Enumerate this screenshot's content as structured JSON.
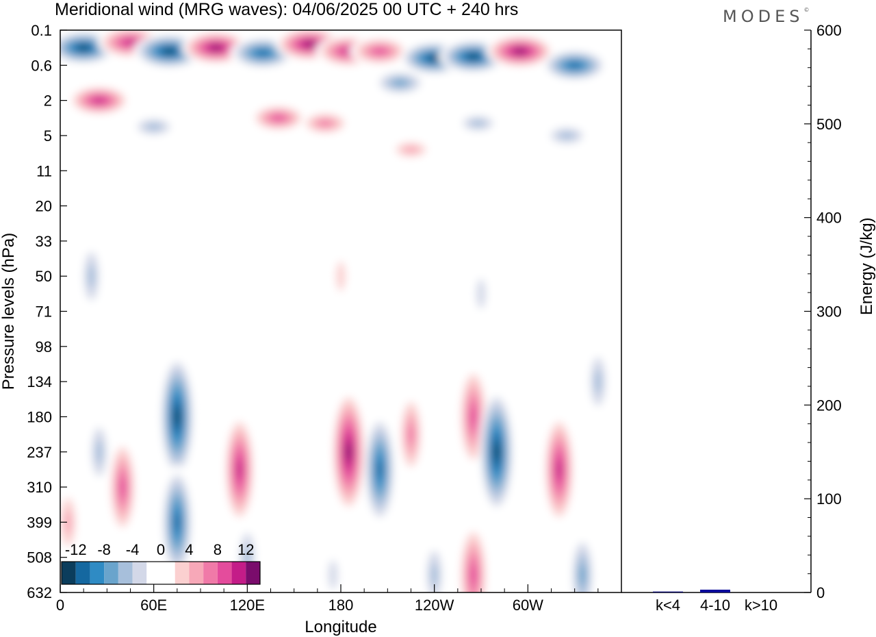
{
  "header": {
    "title": "Meridional wind (MRG waves):  04/06/2025  00 UTC  + 240 hrs",
    "brand": "MODES",
    "brand_mark": "©"
  },
  "chart_data": [
    {
      "type": "heatmap",
      "title": "Meridional wind (MRG waves):  04/06/2025  00 UTC  + 240 hrs",
      "xlabel": "Longitude",
      "ylabel": "Pressure levels (hPa)",
      "x_ticks": [
        "0",
        "60E",
        "120E",
        "180",
        "120W",
        "60W"
      ],
      "y_ticks": [
        "0.1",
        "0.6",
        "2",
        "5",
        "11",
        "20",
        "33",
        "50",
        "71",
        "98",
        "134",
        "180",
        "237",
        "310",
        "399",
        "508",
        "632"
      ],
      "colorbar": {
        "tick_labels": [
          "-12",
          "-8",
          "-4",
          "0",
          "4",
          "8",
          "12"
        ],
        "levels": [
          -14,
          -12,
          -10,
          -8,
          -6,
          -4,
          -2,
          0,
          2,
          4,
          6,
          8,
          10,
          12,
          14
        ],
        "colors": [
          "#0b3d5c",
          "#1568a0",
          "#2f8bc4",
          "#6aa4cc",
          "#a7bfdb",
          "#d3d8e8",
          "#ffffff",
          "#ffffff",
          "#fbd0d0",
          "#f7a8b8",
          "#f07aa8",
          "#e44c9c",
          "#c41c88",
          "#7a0c6c"
        ]
      },
      "blobs": [
        {
          "lon": 15,
          "lev": 1.0,
          "v": -13
        },
        {
          "lon": 45,
          "lev": 0.7,
          "v": 12
        },
        {
          "lon": 70,
          "lev": 1.2,
          "v": -14
        },
        {
          "lon": 100,
          "lev": 1.0,
          "v": 13
        },
        {
          "lon": 130,
          "lev": 1.3,
          "v": -12
        },
        {
          "lon": 160,
          "lev": 0.8,
          "v": 13
        },
        {
          "lon": 185,
          "lev": 1.2,
          "v": 12
        },
        {
          "lon": 205,
          "lev": 1.2,
          "v": 10
        },
        {
          "lon": 218,
          "lev": 3.0,
          "v": -8
        },
        {
          "lon": 240,
          "lev": 1.6,
          "v": -13
        },
        {
          "lon": 265,
          "lev": 1.5,
          "v": -13
        },
        {
          "lon": 295,
          "lev": 1.2,
          "v": 13
        },
        {
          "lon": 330,
          "lev": 2.0,
          "v": -12
        },
        {
          "lon": 25,
          "lev": 4.0,
          "v": 11
        },
        {
          "lon": 60,
          "lev": 5.5,
          "v": -6
        },
        {
          "lon": 140,
          "lev": 5.0,
          "v": 9
        },
        {
          "lon": 170,
          "lev": 5.3,
          "v": 7
        },
        {
          "lon": 225,
          "lev": 6.8,
          "v": 5
        },
        {
          "lon": 268,
          "lev": 5.3,
          "v": -5
        },
        {
          "lon": 325,
          "lev": 6.0,
          "v": -6
        },
        {
          "lon": 20,
          "lev": 14.0,
          "v": -5
        },
        {
          "lon": 180,
          "lev": 14.0,
          "v": 3
        },
        {
          "lon": 270,
          "lev": 15.0,
          "v": -3
        },
        {
          "lon": 25,
          "lev": 24.0,
          "v": -5
        },
        {
          "lon": 75,
          "lev": 22.0,
          "v": -13
        },
        {
          "lon": 75,
          "lev": 28.0,
          "v": -11
        },
        {
          "lon": 115,
          "lev": 25.0,
          "v": 11
        },
        {
          "lon": 40,
          "lev": 26.0,
          "v": 9
        },
        {
          "lon": 5,
          "lev": 28.0,
          "v": 5
        },
        {
          "lon": 185,
          "lev": 24.0,
          "v": 13
        },
        {
          "lon": 205,
          "lev": 25.0,
          "v": -11
        },
        {
          "lon": 225,
          "lev": 23.0,
          "v": 7
        },
        {
          "lon": 265,
          "lev": 22.0,
          "v": 10
        },
        {
          "lon": 280,
          "lev": 24.0,
          "v": -13
        },
        {
          "lon": 320,
          "lev": 25.0,
          "v": 11
        },
        {
          "lon": 345,
          "lev": 20.0,
          "v": -5
        },
        {
          "lon": 120,
          "lev": 30.0,
          "v": -5
        },
        {
          "lon": 265,
          "lev": 31.0,
          "v": 10
        },
        {
          "lon": 175,
          "lev": 31.0,
          "v": -3
        },
        {
          "lon": 240,
          "lev": 31.0,
          "v": -5
        },
        {
          "lon": 335,
          "lev": 31.0,
          "v": -7
        }
      ],
      "lon_range": [
        0,
        360
      ],
      "level_range": [
        0,
        32
      ],
      "grid": false
    },
    {
      "type": "bar",
      "categories": [
        "k<4",
        "4-10",
        "k>10"
      ],
      "values": [
        1,
        3,
        0
      ],
      "colors": [
        "#0a0a6e",
        "#0a0a9a",
        "#0a0a6e"
      ],
      "ylabel": "Energy (J/kg)",
      "ylim": [
        0,
        600
      ],
      "y_ticks": [
        "0",
        "100",
        "200",
        "300",
        "400",
        "500",
        "600"
      ]
    }
  ]
}
